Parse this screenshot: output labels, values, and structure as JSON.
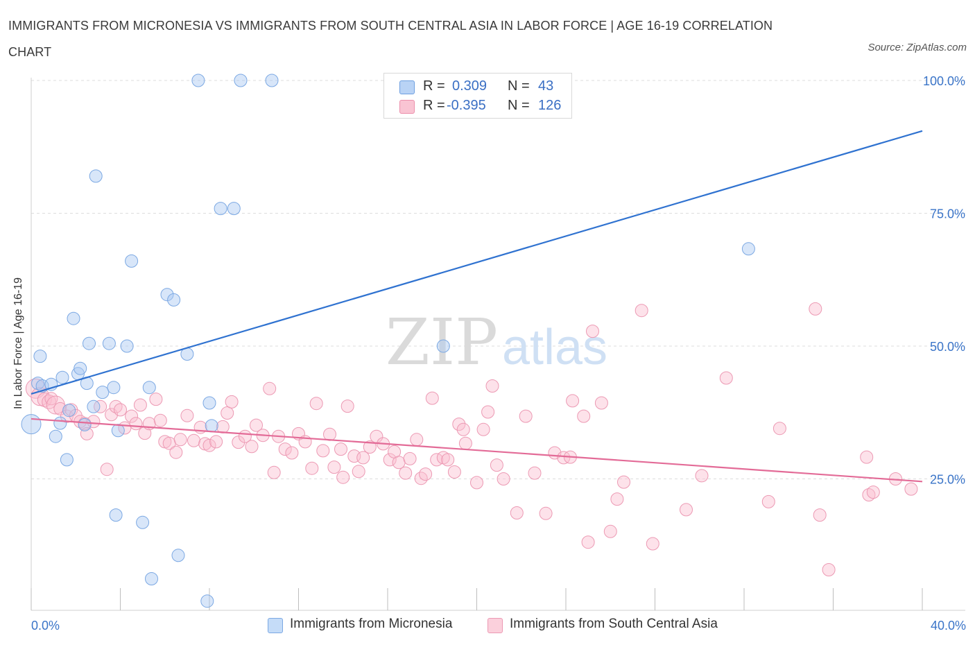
{
  "title": "IMMIGRANTS FROM MICRONESIA VS IMMIGRANTS FROM SOUTH CENTRAL ASIA IN LABOR FORCE | AGE 16-19 CORRELATION CHART",
  "source": "Source: ZipAtlas.com",
  "watermark": {
    "zip": "ZIP",
    "atlas": "atlas"
  },
  "legend": {
    "r_label": "R =",
    "n_label": "N =",
    "rows": [
      {
        "r": "0.309",
        "n": "43",
        "fill": "#b9d3f5",
        "stroke": "#6d9fe0"
      },
      {
        "r": "-0.395",
        "n": "126",
        "fill": "#f9c4d3",
        "stroke": "#ec8fab"
      }
    ]
  },
  "bottom_legend": [
    {
      "label": "Immigrants from Micronesia",
      "fill": "#c5dcf8",
      "stroke": "#7ba8e3"
    },
    {
      "label": "Immigrants from South Central Asia",
      "fill": "#fbd0dc",
      "stroke": "#ec99b3"
    }
  ],
  "chart_data": {
    "type": "scatter",
    "title": "IMMIGRANTS FROM MICRONESIA VS IMMIGRANTS FROM SOUTH CENTRAL ASIA IN LABOR FORCE | AGE 16-19 CORRELATION CHART",
    "xlabel": "",
    "ylabel": "In Labor Force | Age 16-19",
    "xlim": [
      0,
      40
    ],
    "ylim": [
      0,
      100
    ],
    "x_tick_labels": [
      "0.0%",
      "40.0%"
    ],
    "y_ticks": [
      25,
      50,
      75,
      100
    ],
    "y_tick_labels": [
      "25.0%",
      "50.0%",
      "75.0%",
      "100.0%"
    ],
    "grid": "horizontal dashed",
    "legend_position": "top-center",
    "colors": {
      "micronesia": "#2f72d0",
      "south_central_asia": "#e36b97"
    },
    "series": [
      {
        "name": "Immigrants from Micronesia",
        "color": "#2f72d0",
        "trend": {
          "x": [
            0,
            40
          ],
          "y": [
            41,
            90.5
          ]
        },
        "points": [
          [
            0.0,
            35.3,
            14
          ],
          [
            0.3,
            43.0,
            9
          ],
          [
            0.4,
            48.1,
            9
          ],
          [
            0.5,
            42.5,
            9
          ],
          [
            0.9,
            42.8,
            9
          ],
          [
            1.1,
            33.0,
            9
          ],
          [
            1.3,
            35.5,
            9
          ],
          [
            1.4,
            44.1,
            9
          ],
          [
            1.6,
            28.6,
            9
          ],
          [
            1.7,
            37.9,
            9
          ],
          [
            1.9,
            55.2,
            9
          ],
          [
            2.1,
            44.8,
            9
          ],
          [
            2.2,
            45.8,
            9
          ],
          [
            2.4,
            35.2,
            9
          ],
          [
            2.5,
            43.0,
            9
          ],
          [
            2.6,
            50.5,
            9
          ],
          [
            2.8,
            38.6,
            9
          ],
          [
            2.9,
            82.0,
            9
          ],
          [
            3.2,
            41.3,
            9
          ],
          [
            3.5,
            50.5,
            9
          ],
          [
            3.7,
            42.2,
            9
          ],
          [
            3.8,
            18.2,
            9
          ],
          [
            3.9,
            34.1,
            9
          ],
          [
            4.3,
            50.0,
            9
          ],
          [
            4.5,
            66.0,
            9
          ],
          [
            5.0,
            16.8,
            9
          ],
          [
            5.3,
            42.2,
            9
          ],
          [
            5.4,
            6.2,
            9
          ],
          [
            6.1,
            59.7,
            9
          ],
          [
            6.4,
            58.7,
            9
          ],
          [
            6.6,
            10.6,
            9
          ],
          [
            7.0,
            48.5,
            9
          ],
          [
            7.5,
            100.0,
            9
          ],
          [
            7.9,
            2.0,
            9
          ],
          [
            8.0,
            39.3,
            9
          ],
          [
            8.1,
            35.0,
            9
          ],
          [
            8.5,
            75.9,
            9
          ],
          [
            9.1,
            75.9,
            9
          ],
          [
            9.4,
            100.0,
            9
          ],
          [
            10.8,
            100.0,
            9
          ],
          [
            18.5,
            50.0,
            9
          ],
          [
            32.2,
            68.3,
            9
          ]
        ]
      },
      {
        "name": "Immigrants from South Central Asia",
        "color": "#e36b97",
        "trend": {
          "x": [
            0,
            40
          ],
          "y": [
            36.3,
            24.5
          ]
        },
        "points": [
          [
            0.2,
            42.0,
            14
          ],
          [
            0.4,
            40.5,
            13
          ],
          [
            0.6,
            39.9,
            10
          ],
          [
            0.8,
            39.5,
            10
          ],
          [
            0.9,
            40.1,
            9
          ],
          [
            1.1,
            38.9,
            13
          ],
          [
            1.3,
            38.2,
            9
          ],
          [
            1.6,
            36.8,
            9
          ],
          [
            1.8,
            38.0,
            9
          ],
          [
            2.0,
            36.9,
            9
          ],
          [
            2.2,
            35.8,
            9
          ],
          [
            2.4,
            35.4,
            9
          ],
          [
            2.5,
            33.5,
            9
          ],
          [
            2.8,
            35.8,
            9
          ],
          [
            3.1,
            38.6,
            9
          ],
          [
            3.4,
            26.8,
            9
          ],
          [
            3.6,
            37.1,
            9
          ],
          [
            3.8,
            38.6,
            9
          ],
          [
            4.0,
            38.0,
            9
          ],
          [
            4.2,
            34.6,
            9
          ],
          [
            4.5,
            36.8,
            9
          ],
          [
            4.7,
            35.4,
            9
          ],
          [
            4.9,
            38.9,
            9
          ],
          [
            5.1,
            33.6,
            9
          ],
          [
            5.3,
            35.4,
            9
          ],
          [
            5.6,
            40.0,
            9
          ],
          [
            5.8,
            36.0,
            9
          ],
          [
            6.0,
            32.0,
            9
          ],
          [
            6.2,
            31.7,
            9
          ],
          [
            6.5,
            30.0,
            9
          ],
          [
            6.7,
            32.4,
            9
          ],
          [
            7.0,
            36.9,
            9
          ],
          [
            7.3,
            32.2,
            9
          ],
          [
            7.6,
            34.7,
            9
          ],
          [
            7.8,
            31.6,
            9
          ],
          [
            8.0,
            31.3,
            9
          ],
          [
            8.3,
            32.0,
            9
          ],
          [
            8.6,
            34.8,
            9
          ],
          [
            8.8,
            37.4,
            9
          ],
          [
            9.0,
            39.5,
            9
          ],
          [
            9.3,
            31.9,
            9
          ],
          [
            9.6,
            33.0,
            9
          ],
          [
            9.9,
            31.1,
            9
          ],
          [
            10.1,
            35.1,
            9
          ],
          [
            10.4,
            33.2,
            9
          ],
          [
            10.7,
            42.0,
            9
          ],
          [
            10.9,
            26.2,
            9
          ],
          [
            11.1,
            33.0,
            9
          ],
          [
            11.4,
            30.6,
            9
          ],
          [
            11.7,
            29.9,
            9
          ],
          [
            12.0,
            33.5,
            9
          ],
          [
            12.3,
            32.0,
            9
          ],
          [
            12.6,
            27.0,
            9
          ],
          [
            12.8,
            39.2,
            9
          ],
          [
            13.1,
            30.3,
            9
          ],
          [
            13.4,
            33.4,
            9
          ],
          [
            13.6,
            27.2,
            9
          ],
          [
            13.9,
            30.6,
            9
          ],
          [
            14.0,
            25.3,
            9
          ],
          [
            14.2,
            38.7,
            9
          ],
          [
            14.5,
            29.3,
            9
          ],
          [
            14.7,
            26.4,
            9
          ],
          [
            14.9,
            29.0,
            9
          ],
          [
            15.2,
            31.0,
            9
          ],
          [
            15.5,
            33.0,
            9
          ],
          [
            15.8,
            31.6,
            9
          ],
          [
            16.1,
            28.6,
            9
          ],
          [
            16.3,
            30.1,
            9
          ],
          [
            16.5,
            28.1,
            9
          ],
          [
            16.8,
            26.1,
            9
          ],
          [
            17.0,
            28.8,
            9
          ],
          [
            17.3,
            32.4,
            9
          ],
          [
            17.5,
            25.1,
            9
          ],
          [
            17.7,
            25.9,
            9
          ],
          [
            18.0,
            40.2,
            9
          ],
          [
            18.2,
            28.6,
            9
          ],
          [
            18.5,
            29.0,
            9
          ],
          [
            18.7,
            28.6,
            9
          ],
          [
            19.0,
            26.3,
            9
          ],
          [
            19.2,
            35.3,
            9
          ],
          [
            19.4,
            34.3,
            9
          ],
          [
            19.5,
            31.7,
            9
          ],
          [
            20.0,
            24.3,
            9
          ],
          [
            20.3,
            34.3,
            9
          ],
          [
            20.5,
            37.6,
            9
          ],
          [
            20.7,
            42.5,
            9
          ],
          [
            20.9,
            27.6,
            9
          ],
          [
            21.2,
            25.0,
            9
          ],
          [
            21.8,
            18.6,
            9
          ],
          [
            22.2,
            36.8,
            9
          ],
          [
            22.6,
            26.1,
            9
          ],
          [
            23.1,
            18.5,
            9
          ],
          [
            23.5,
            29.9,
            9
          ],
          [
            23.9,
            29.0,
            9
          ],
          [
            24.2,
            29.1,
            9
          ],
          [
            24.3,
            39.7,
            9
          ],
          [
            24.8,
            36.8,
            9
          ],
          [
            25.0,
            13.1,
            9
          ],
          [
            25.2,
            52.8,
            9
          ],
          [
            25.6,
            39.3,
            9
          ],
          [
            26.0,
            15.1,
            9
          ],
          [
            26.3,
            21.2,
            9
          ],
          [
            26.6,
            24.4,
            9
          ],
          [
            27.4,
            56.7,
            9
          ],
          [
            27.9,
            12.8,
            9
          ],
          [
            29.4,
            19.2,
            9
          ],
          [
            30.1,
            25.6,
            9
          ],
          [
            31.2,
            44.0,
            9
          ],
          [
            33.1,
            20.7,
            9
          ],
          [
            33.6,
            34.5,
            9
          ],
          [
            35.2,
            57.0,
            9
          ],
          [
            35.4,
            18.2,
            9
          ],
          [
            35.8,
            7.9,
            9
          ],
          [
            37.5,
            29.1,
            9
          ],
          [
            37.6,
            22.0,
            9
          ],
          [
            37.8,
            22.5,
            9
          ],
          [
            38.8,
            25.0,
            9
          ],
          [
            39.5,
            23.1,
            9
          ]
        ]
      }
    ]
  }
}
